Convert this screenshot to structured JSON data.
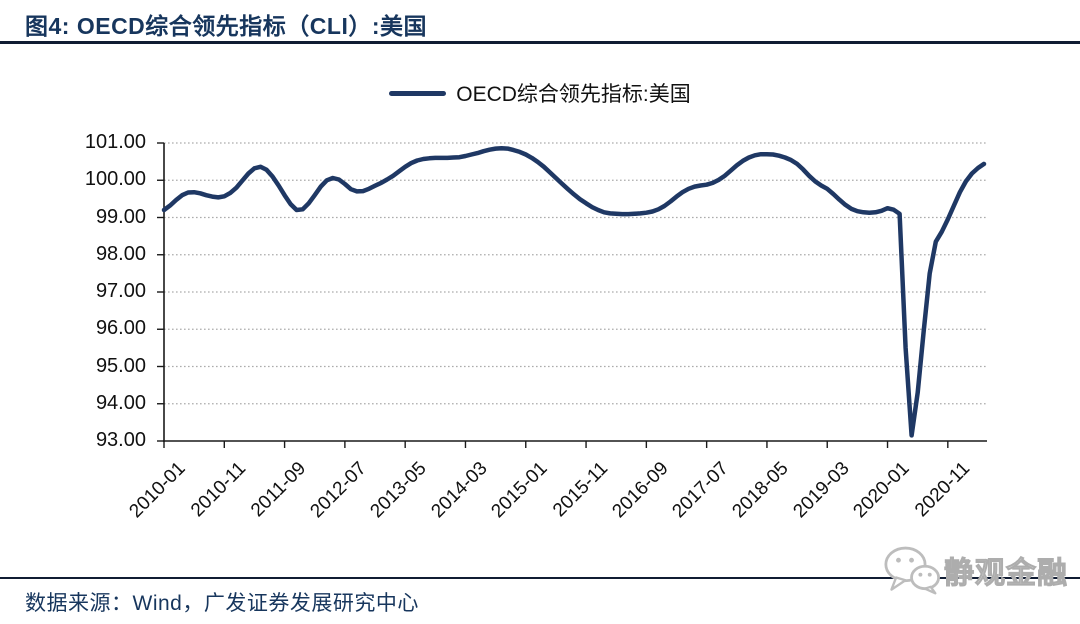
{
  "header": {
    "title": "图4:  OECD综合领先指标（CLI）:美国"
  },
  "legend": {
    "label": "OECD综合领先指标:美国"
  },
  "footer": {
    "source": "数据来源：Wind，广发证券发展研究中心"
  },
  "watermark": {
    "label": "静观金融",
    "icon": "wechat-icon"
  },
  "colors": {
    "line": "#1F3864",
    "title": "#17365D",
    "rule": "#101C33",
    "grid": "#ACACAC",
    "axis": "#1A1A1A",
    "watermark_gray": "#BDBDBD"
  },
  "chart_data": {
    "type": "line",
    "title": "OECD综合领先指标（CLI）:美国",
    "grid": "horizontal-dotted",
    "legend_position": "top-center",
    "ylim": [
      93,
      101
    ],
    "y_tick_step": 1,
    "y_tick_labels": [
      "101.00",
      "100.00",
      "99.00",
      "98.00",
      "97.00",
      "96.00",
      "95.00",
      "94.00",
      "93.00"
    ],
    "x_tick_every_months": 10,
    "x_tick_labels": [
      "2010-01",
      "2010-11",
      "2011-09",
      "2012-07",
      "2013-05",
      "2014-03",
      "2015-01",
      "2015-11",
      "2016-09",
      "2017-07",
      "2018-05",
      "2019-03",
      "2020-01",
      "2020-11"
    ],
    "series": [
      {
        "name": "OECD综合领先指标:美国",
        "color": "#1F3864",
        "frequency": "monthly",
        "start_month": "2010-01",
        "end_month": "2021-05",
        "values": [
          99.2,
          99.32,
          99.47,
          99.6,
          99.67,
          99.68,
          99.65,
          99.6,
          99.56,
          99.54,
          99.57,
          99.66,
          99.8,
          99.99,
          100.18,
          100.32,
          100.36,
          100.28,
          100.1,
          99.86,
          99.6,
          99.36,
          99.2,
          99.22,
          99.38,
          99.6,
          99.83,
          100.0,
          100.06,
          100.02,
          99.9,
          99.76,
          99.7,
          99.71,
          99.77,
          99.85,
          99.93,
          100.02,
          100.12,
          100.24,
          100.36,
          100.46,
          100.53,
          100.57,
          100.59,
          100.6,
          100.6,
          100.6,
          100.61,
          100.62,
          100.65,
          100.69,
          100.73,
          100.78,
          100.82,
          100.85,
          100.86,
          100.85,
          100.81,
          100.76,
          100.69,
          100.6,
          100.49,
          100.36,
          100.21,
          100.06,
          99.91,
          99.76,
          99.62,
          99.49,
          99.38,
          99.28,
          99.2,
          99.14,
          99.11,
          99.1,
          99.09,
          99.09,
          99.1,
          99.11,
          99.13,
          99.16,
          99.22,
          99.31,
          99.43,
          99.56,
          99.68,
          99.77,
          99.83,
          99.86,
          99.88,
          99.93,
          100.01,
          100.12,
          100.26,
          100.4,
          100.52,
          100.61,
          100.67,
          100.7,
          100.7,
          100.69,
          100.66,
          100.61,
          100.54,
          100.44,
          100.29,
          100.12,
          99.97,
          99.86,
          99.77,
          99.63,
          99.48,
          99.34,
          99.23,
          99.17,
          99.14,
          99.13,
          99.14,
          99.18,
          99.25,
          99.21,
          99.1,
          95.5,
          93.15,
          94.3,
          95.95,
          97.5,
          98.35,
          98.62,
          98.95,
          99.32,
          99.68,
          99.97,
          100.18,
          100.33,
          100.44
        ]
      }
    ]
  }
}
